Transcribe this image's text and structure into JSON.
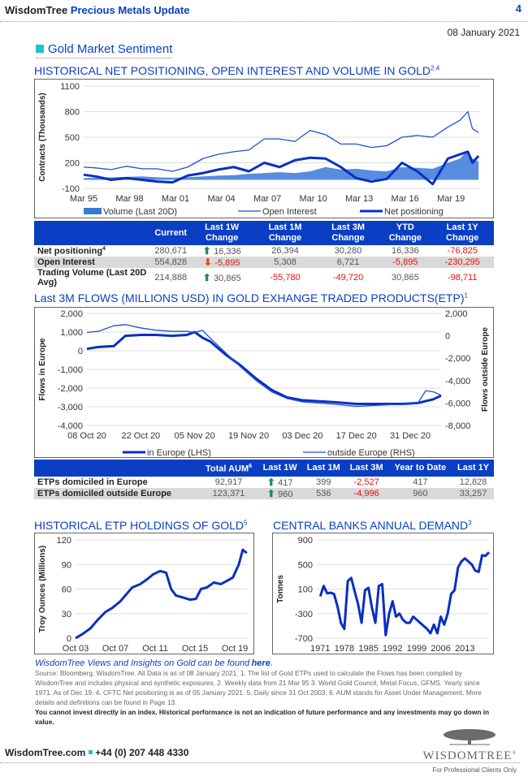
{
  "header": {
    "brand": "WisdomTree",
    "title": "Precious Metals Update",
    "page": "4",
    "date": "08 January 2021"
  },
  "section": "Gold Market Sentiment",
  "chart1_title": "HISTORICAL NET POSITIONING, OPEN INTEREST AND VOLUME IN GOLD",
  "chart1_sup": "2,4",
  "chart2_title": "Last 3M FLOWS (MILLIONS USD) IN GOLD EXHANGE TRADED PRODUCTS(ETP)",
  "chart2_sup": "1",
  "chart3_title": "HISTORICAL ETP HOLDINGS OF GOLD",
  "chart3_sup": "5",
  "chart4_title": "CENTRAL BANKS ANNUAL DEMAND",
  "chart4_sup": "3",
  "chart_data": [
    {
      "type": "line",
      "ylabel": "Contracts (Thousands)",
      "ylim": [
        -100,
        1100
      ],
      "yticks": [
        "1100",
        "800",
        "500",
        "200",
        "-100"
      ],
      "ytick_vals": [
        1100,
        800,
        500,
        200,
        -100
      ],
      "xticks": [
        "Mar 95",
        "Mar 98",
        "Mar 01",
        "Mar 04",
        "Mar 07",
        "Mar 10",
        "Mar 13",
        "Mar 16",
        "Mar 19"
      ],
      "xtick_vals": [
        1995.2,
        1998.2,
        2001.2,
        2004.2,
        2007.2,
        2010.2,
        2013.2,
        2016.2,
        2019.2
      ],
      "xlim": [
        1995.2,
        2021.1
      ],
      "x": [
        1995.2,
        1996,
        1997,
        1998,
        1999,
        2000,
        2001,
        2002,
        2003,
        2004,
        2005,
        2006,
        2007,
        2008,
        2009,
        2010,
        2011,
        2012,
        2013,
        2014,
        2015,
        2016,
        2017,
        2018,
        2019,
        2019.8,
        2020.3,
        2020.6,
        2021
      ],
      "series": [
        {
          "name": "Volume (Last 20D)",
          "style": "area",
          "color": "#3a78d8",
          "values": [
            20,
            25,
            30,
            35,
            40,
            30,
            25,
            30,
            40,
            50,
            55,
            70,
            80,
            90,
            80,
            100,
            150,
            120,
            130,
            110,
            100,
            150,
            140,
            130,
            200,
            250,
            350,
            250,
            215
          ]
        },
        {
          "name": "Open Interest",
          "style": "thin",
          "color": "#1e4fd8",
          "values": [
            150,
            140,
            120,
            160,
            130,
            130,
            100,
            150,
            250,
            300,
            330,
            350,
            480,
            480,
            450,
            580,
            530,
            420,
            420,
            380,
            400,
            500,
            520,
            500,
            620,
            700,
            800,
            600,
            555
          ]
        },
        {
          "name": "Net positioning",
          "style": "thick",
          "color": "#0a2fc0",
          "values": [
            60,
            40,
            0,
            20,
            0,
            -20,
            -30,
            50,
            80,
            120,
            150,
            100,
            200,
            150,
            230,
            260,
            250,
            150,
            20,
            -20,
            10,
            200,
            100,
            -50,
            250,
            300,
            330,
            200,
            281
          ]
        }
      ]
    },
    {
      "type": "line",
      "ylabel": "Flows in Europe",
      "ylabel2": "Flows outside Europe",
      "ylim": [
        -4000,
        2000
      ],
      "ylim2": [
        -8000,
        2000
      ],
      "yticks": [
        "2,000",
        "1,000",
        "0",
        "-1,000",
        "-2,000",
        "-3,000",
        "-4,000"
      ],
      "ytick_vals": [
        2000,
        1000,
        0,
        -1000,
        -2000,
        -3000,
        -4000
      ],
      "yticks2": [
        "2,000",
        "0",
        "-2,000",
        "-4,000",
        "-6,000",
        "-8,000"
      ],
      "ytick2_vals": [
        2000,
        0,
        -2000,
        -4000,
        -6000,
        -8000
      ],
      "xticks": [
        "08 Oct 20",
        "22 Oct 20",
        "05 Nov 20",
        "19 Nov 20",
        "03 Dec 20",
        "17 Dec 20",
        "31 Dec 20"
      ],
      "xtick_vals": [
        0,
        14,
        28,
        42,
        56,
        70,
        84
      ],
      "xlim": [
        0,
        92
      ],
      "x": [
        0,
        3,
        7,
        10,
        14,
        18,
        22,
        26,
        28,
        30,
        32,
        36,
        40,
        44,
        48,
        52,
        56,
        60,
        64,
        70,
        76,
        82,
        86,
        88,
        90,
        92
      ],
      "series": [
        {
          "name": "in Europe (LHS)",
          "style": "thick",
          "color": "#0a2fc0",
          "axis": "left",
          "values": [
            100,
            200,
            250,
            800,
            850,
            850,
            800,
            850,
            1000,
            700,
            500,
            -200,
            -800,
            -1500,
            -2100,
            -2500,
            -2650,
            -2700,
            -2750,
            -2850,
            -2850,
            -2850,
            -2800,
            -2700,
            -2600,
            -2400
          ]
        },
        {
          "name": "outside Europe (RHS)",
          "style": "thin",
          "color": "#1e4fd8",
          "axis": "right",
          "values": [
            300,
            400,
            900,
            1000,
            700,
            500,
            400,
            400,
            300,
            500,
            -200,
            -1500,
            -2800,
            -4000,
            -5000,
            -5600,
            -5900,
            -6000,
            -6100,
            -6300,
            -6200,
            -6100,
            -6000,
            -4900,
            -5000,
            -5300
          ]
        }
      ]
    },
    {
      "type": "line",
      "ylabel": "Troy Ounces (Millions)",
      "ylim": [
        0,
        120
      ],
      "yticks": [
        "120",
        "90",
        "60",
        "30",
        "0"
      ],
      "ytick_vals": [
        120,
        90,
        60,
        30,
        0
      ],
      "xticks": [
        "Oct 03",
        "Oct 07",
        "Oct 11",
        "Oct 15",
        "Oct 19"
      ],
      "xtick_vals": [
        2003.8,
        2007.8,
        2011.8,
        2015.8,
        2019.8
      ],
      "xlim": [
        2003.8,
        2021.1
      ],
      "x": [
        2003.8,
        2004.5,
        2005.3,
        2006,
        2006.8,
        2007.5,
        2008.3,
        2009,
        2009.5,
        2010.3,
        2011,
        2011.6,
        2012.3,
        2012.9,
        2013.4,
        2013.9,
        2014.5,
        2015.3,
        2015.9,
        2016.4,
        2017,
        2017.7,
        2018.4,
        2019,
        2019.6,
        2020.2,
        2020.6,
        2021
      ],
      "series": [
        {
          "name": "ETP holdings",
          "style": "thick",
          "color": "#0a2fc0",
          "values": [
            0,
            5,
            12,
            22,
            32,
            37,
            45,
            55,
            62,
            66,
            72,
            78,
            82,
            80,
            60,
            52,
            50,
            47,
            48,
            60,
            62,
            68,
            66,
            70,
            74,
            90,
            108,
            104
          ]
        }
      ]
    },
    {
      "type": "line",
      "ylabel": "Tonnes",
      "ylim": [
        -700,
        900
      ],
      "yticks": [
        "900",
        "500",
        "100",
        "-300",
        "-700"
      ],
      "ytick_vals": [
        900,
        500,
        100,
        -300,
        -700
      ],
      "xticks": [
        "1971",
        "1978",
        "1985",
        "1992",
        "1999",
        "2006",
        "2013"
      ],
      "xtick_vals": [
        1971,
        1978,
        1985,
        1992,
        1999,
        2006,
        2013
      ],
      "xlim": [
        1970,
        2020
      ],
      "x": [
        1971,
        1972,
        1973,
        1974,
        1975,
        1976,
        1977,
        1978,
        1979,
        1980,
        1981,
        1982,
        1983,
        1984,
        1985,
        1986,
        1987,
        1988,
        1989,
        1990,
        1991,
        1992,
        1993,
        1994,
        1995,
        1996,
        1997,
        1998,
        1999,
        2000,
        2001,
        2002,
        2003,
        2004,
        2005,
        2006,
        2007,
        2008,
        2009,
        2010,
        2011,
        2012,
        2013,
        2014,
        2015,
        2016,
        2017,
        2018,
        2019,
        2020
      ],
      "series": [
        {
          "name": "Central bank demand",
          "style": "thick",
          "color": "#0a2fc0",
          "values": [
            -20,
            150,
            30,
            40,
            20,
            -180,
            -450,
            -550,
            230,
            280,
            60,
            -150,
            -450,
            80,
            120,
            -200,
            -450,
            150,
            180,
            -650,
            -300,
            -100,
            -350,
            -300,
            -400,
            -450,
            -450,
            -350,
            -400,
            -450,
            -500,
            -550,
            -620,
            -480,
            -620,
            -350,
            -480,
            -300,
            20,
            80,
            450,
            550,
            600,
            550,
            500,
            400,
            380,
            650,
            640,
            700
          ]
        }
      ]
    }
  ],
  "legend1": [
    "Volume (Last 20D)",
    "Open Interest",
    "Net positioning"
  ],
  "legend2": [
    "in Europe (LHS)",
    "outside Europe (RHS)"
  ],
  "table1": {
    "headers": [
      "",
      "Current",
      "Last 1W Change",
      "Last 1M Change",
      "Last 3M Change",
      "YTD Change",
      "Last 1Y Change"
    ],
    "rows": [
      {
        "label": "Net positioning",
        "sup": "4",
        "current": "280,671",
        "w1": "16,336",
        "w1_dir": "up",
        "m1": "26,394",
        "m3": "30,280",
        "ytd": "16,336",
        "y1": "-76,825"
      },
      {
        "label": "Open Interest",
        "sup": "",
        "current": "554,828",
        "w1": "-5,895",
        "w1_dir": "down",
        "m1": "5,308",
        "m3": "6,721",
        "ytd": "-5,895",
        "y1": "-230,295"
      },
      {
        "label": "Trading Volume (Last 20D Avg)",
        "sup": "",
        "current": "214,888",
        "w1": "30,865",
        "w1_dir": "up",
        "m1": "-55,780",
        "m3": "-49,720",
        "ytd": "30,865",
        "y1": "-98,711"
      }
    ]
  },
  "table2": {
    "headers": [
      "",
      "Total AUM",
      "Last 1W",
      "Last 1M",
      "Last 3M",
      "Year to Date",
      "Last 1Y"
    ],
    "aum_sup": "6",
    "rows": [
      {
        "label": "ETPs domiciled in Europe",
        "aum": "92,917",
        "w1": "417",
        "m1": "399",
        "m3": "-2,527",
        "ytd": "417",
        "y1": "12,828"
      },
      {
        "label": "ETPs domiciled outside Europe",
        "aum": "123,371",
        "w1": "960",
        "m1": "536",
        "m3": "-4,996",
        "ytd": "960",
        "y1": "33,257"
      }
    ]
  },
  "footer": {
    "link_text": "WisdomTree Views and Insights on Gold can be found",
    "here": "here",
    "source": "Source: Bloomberg, WisdomTree. All Data is as of 08 January 2021. 1. The list of Gold ETPs used to calculate the Flows has been compiled by WisdomTree and includes physical and synthetic exposures. 2. Weekly data from 21 Mar 95 3. World Gold Council, Metal Focus, GFMS. Yearly since 1971. As of Dec 19. 4. CFTC Net positioning is as of 05 January 2021. 5. Daily since 31 Oct 2003. 6. AUM stands for Asset Under Management. More details and definitions can be found in Page 13.",
    "warning": "You cannot invest directly in an index. Historical performance is not an indication of future performance and any investments may go down in value.",
    "website": "WisdomTree.com",
    "phone": "+44 (0) 207 448 4330",
    "logo": "WisdomTree",
    "professional": "For Professional Clients Only"
  }
}
